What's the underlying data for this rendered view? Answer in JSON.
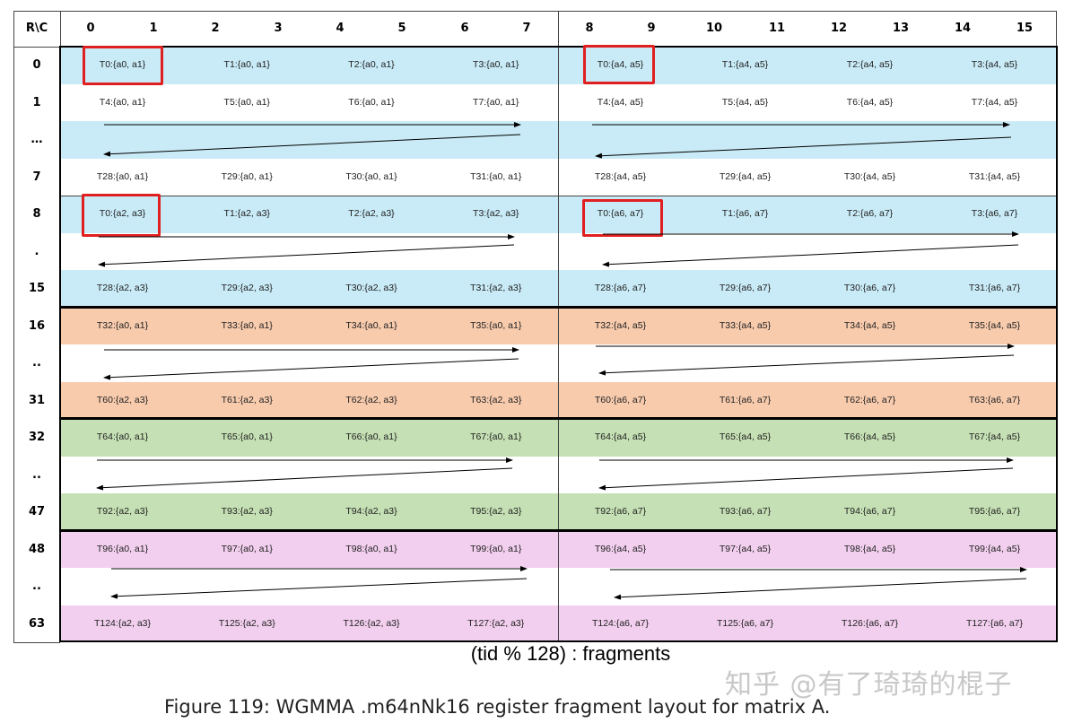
{
  "header": {
    "corner": "R\\C",
    "columns": [
      "0",
      "1",
      "2",
      "3",
      "4",
      "5",
      "6",
      "7",
      "8",
      "9",
      "10",
      "11",
      "12",
      "13",
      "14",
      "15"
    ]
  },
  "colors": {
    "blue": "#c9ebf7",
    "orange": "#f8cbad",
    "green": "#c5e0b4",
    "pink": "#f2cfee",
    "white": "#ffffff",
    "highlight": "#e02020"
  },
  "rows": [
    {
      "label": "0",
      "color": "blue",
      "cells": [
        "T0:{a0, a1}",
        "T1:{a0, a1}",
        "T2:{a0, a1}",
        "T3:{a0, a1}",
        "T0:{a4, a5}",
        "T1:{a4, a5}",
        "T2:{a4, a5}",
        "T3:{a4, a5}"
      ]
    },
    {
      "label": "1",
      "color": "white",
      "cells": [
        "T4:{a0, a1}",
        "T5:{a0, a1}",
        "T6:{a0, a1}",
        "T7:{a0, a1}",
        "T4:{a4, a5}",
        "T5:{a4, a5}",
        "T6:{a4, a5}",
        "T7:{a4, a5}"
      ]
    },
    {
      "label": "…",
      "color": "blue",
      "cells": []
    },
    {
      "label": "7",
      "color": "white",
      "cells": [
        "T28:{a0, a1}",
        "T29:{a0, a1}",
        "T30:{a0, a1}",
        "T31:{a0, a1}",
        "T28:{a4, a5}",
        "T29:{a4, a5}",
        "T30:{a4, a5}",
        "T31:{a4, a5}"
      ]
    },
    {
      "label": "8",
      "color": "blue",
      "cells": [
        "T0:{a2, a3}",
        "T1:{a2, a3}",
        "T2:{a2, a3}",
        "T3:{a2, a3}",
        "T0:{a6, a7}",
        "T1:{a6, a7}",
        "T2:{a6, a7}",
        "T3:{a6, a7}"
      ]
    },
    {
      "label": ".",
      "color": "white",
      "cells": []
    },
    {
      "label": "15",
      "color": "blue",
      "cells": [
        "T28:{a2, a3}",
        "T29:{a2, a3}",
        "T30:{a2, a3}",
        "T31:{a2, a3}",
        "T28:{a6, a7}",
        "T29:{a6, a7}",
        "T30:{a6, a7}",
        "T31:{a6, a7}"
      ]
    },
    {
      "label": "16",
      "color": "orange",
      "cells": [
        "T32:{a0, a1}",
        "T33:{a0, a1}",
        "T34:{a0, a1}",
        "T35:{a0, a1}",
        "T32:{a4, a5}",
        "T33:{a4, a5}",
        "T34:{a4, a5}",
        "T35:{a4, a5}"
      ]
    },
    {
      "label": "..",
      "color": "white",
      "cells": []
    },
    {
      "label": "31",
      "color": "orange",
      "cells": [
        "T60:{a2, a3}",
        "T61:{a2, a3}",
        "T62:{a2, a3}",
        "T63:{a2, a3}",
        "T60:{a6, a7}",
        "T61:{a6, a7}",
        "T62:{a6, a7}",
        "T63:{a6, a7}"
      ]
    },
    {
      "label": "32",
      "color": "green",
      "cells": [
        "T64:{a0, a1}",
        "T65:{a0, a1}",
        "T66:{a0, a1}",
        "T67:{a0, a1}",
        "T64:{a4, a5}",
        "T65:{a4, a5}",
        "T66:{a4, a5}",
        "T67:{a4, a5}"
      ]
    },
    {
      "label": "..",
      "color": "white",
      "cells": []
    },
    {
      "label": "47",
      "color": "green",
      "cells": [
        "T92:{a2, a3}",
        "T93:{a2, a3}",
        "T94:{a2, a3}",
        "T95:{a2, a3}",
        "T92:{a6, a7}",
        "T93:{a6, a7}",
        "T94:{a6, a7}",
        "T95:{a6, a7}"
      ]
    },
    {
      "label": "48",
      "color": "pink",
      "cells": [
        "T96:{a0, a1}",
        "T97:{a0, a1}",
        "T98:{a0, a1}",
        "T99:{a0, a1}",
        "T96:{a4, a5}",
        "T97:{a4, a5}",
        "T98:{a4, a5}",
        "T99:{a4, a5}"
      ]
    },
    {
      "label": "..",
      "color": "white",
      "cells": []
    },
    {
      "label": "63",
      "color": "pink",
      "cells": [
        "T124:{a2, a3}",
        "T125:{a2, a3}",
        "T126:{a2, a3}",
        "T127:{a2, a3}",
        "T124:{a6, a7}",
        "T125:{a6, a7}",
        "T126:{a6, a7}",
        "T127:{a6, a7}"
      ]
    }
  ],
  "caption_fragments": "(tid % 128) : fragments",
  "figure_caption": "Figure 119: WGMMA .m64nNk16 register fragment layout for matrix A.",
  "watermark": "知乎 @有了琦琦的棍子"
}
